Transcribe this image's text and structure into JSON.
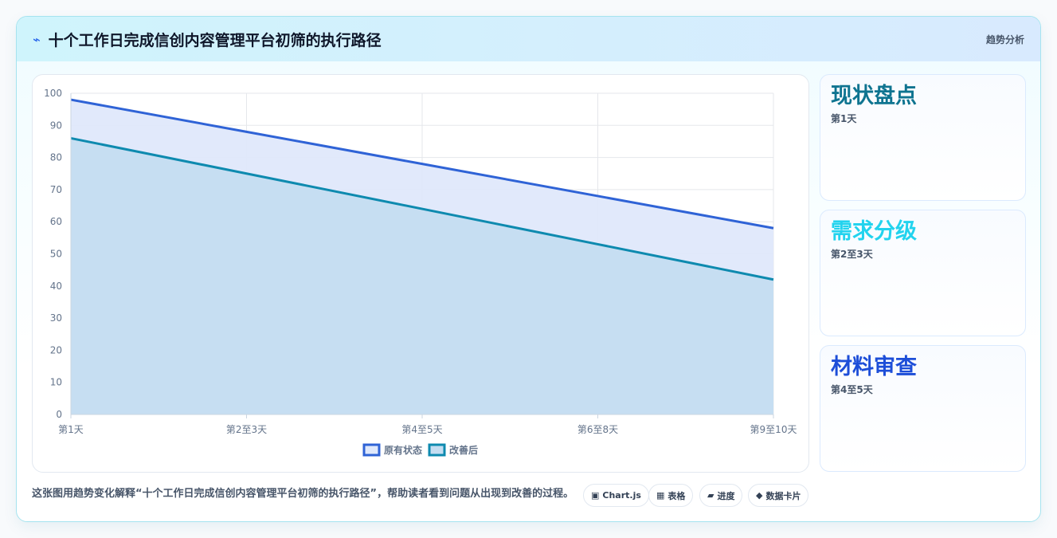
{
  "header": {
    "icon": "lightning-icon",
    "title": "十个工作日完成信创内容管理平台初筛的执行路径",
    "tag": "趋势分析"
  },
  "chart_data": {
    "type": "area",
    "categories": [
      "第1天",
      "第2至3天",
      "第4至5天",
      "第6至8天",
      "第9至10天"
    ],
    "series": [
      {
        "name": "原有状态",
        "values": [
          98,
          88,
          78,
          68,
          58
        ],
        "color": "#2f63d6",
        "fill": "#dfe8fb"
      },
      {
        "name": "改善后",
        "values": [
          86,
          75,
          64,
          53,
          42
        ],
        "color": "#0e8aaf",
        "fill": "#c4ddf1"
      }
    ],
    "ylim": [
      0,
      100
    ],
    "yticks": [
      0,
      10,
      20,
      30,
      40,
      50,
      60,
      70,
      80,
      90,
      100
    ],
    "grid": true,
    "legend": "bottom"
  },
  "side_cards": [
    {
      "name": "现状盘点",
      "days": "第1天",
      "color": "#0e7490"
    },
    {
      "name": "需求分级",
      "days": "第2至3天",
      "color": "#22d3ee"
    },
    {
      "name": "材料审查",
      "days": "第4至5天",
      "color": "#1d4ed8"
    }
  ],
  "footer": {
    "text": "这张图用趋势变化解释“十个工作日完成信创内容管理平台初筛的执行路径”，帮助读者看到问题从出现到改善的过程。",
    "chips": [
      {
        "icon": "▣",
        "label": "Chart.js"
      },
      {
        "icon": "▦",
        "label": "表格"
      },
      {
        "icon": "▰",
        "label": "进度"
      },
      {
        "icon": "◆",
        "label": "数据卡片"
      }
    ]
  }
}
